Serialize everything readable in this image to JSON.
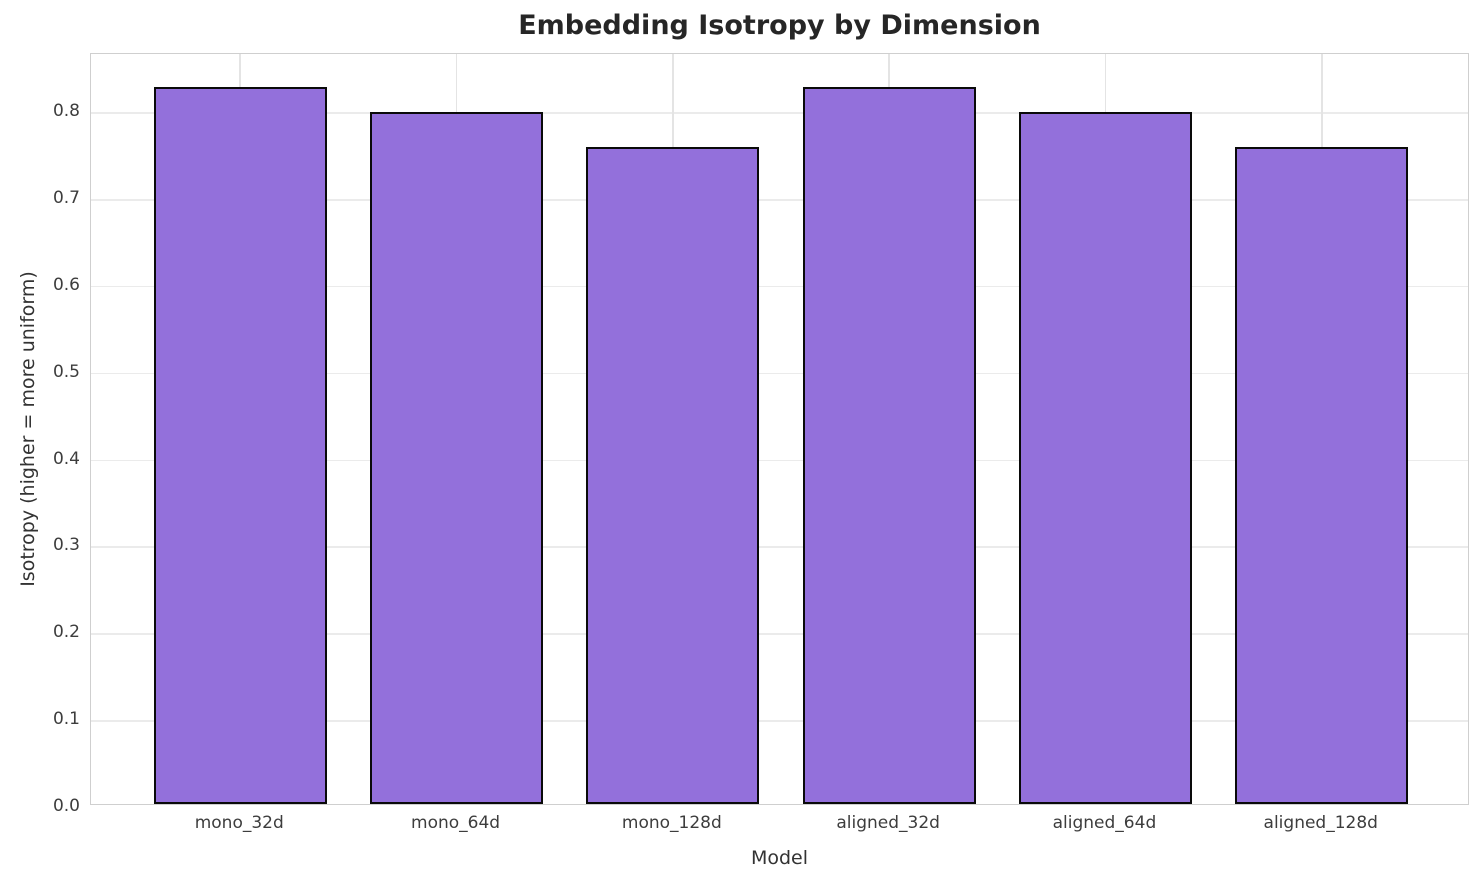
{
  "chart_data": {
    "type": "bar",
    "title": "Embedding Isotropy by Dimension",
    "xlabel": "Model",
    "ylabel": "Isotropy (higher = more uniform)",
    "categories": [
      "mono_32d",
      "mono_64d",
      "mono_128d",
      "aligned_32d",
      "aligned_64d",
      "aligned_128d"
    ],
    "values": [
      0.826,
      0.797,
      0.756,
      0.826,
      0.797,
      0.756
    ],
    "ylim": [
      0,
      0.867
    ],
    "yticks": [
      0.0,
      0.1,
      0.2,
      0.3,
      0.4,
      0.5,
      0.6,
      0.7,
      0.8
    ],
    "ytick_labels": [
      "0.0",
      "0.1",
      "0.2",
      "0.3",
      "0.4",
      "0.5",
      "0.6",
      "0.7",
      "0.8"
    ],
    "grid": true,
    "legend": null,
    "bar_width_fraction": 0.8,
    "category_pad_units": 0.69,
    "colors": {
      "bar_fill": "#9370DB",
      "bar_edge": "#0a0a0a",
      "grid_line": "#ebebeb",
      "spine": "#cfcfcf",
      "tick_text": "#3d3d3d",
      "label_text": "#333333",
      "title_text": "#262626",
      "background": "#ffffff"
    }
  }
}
